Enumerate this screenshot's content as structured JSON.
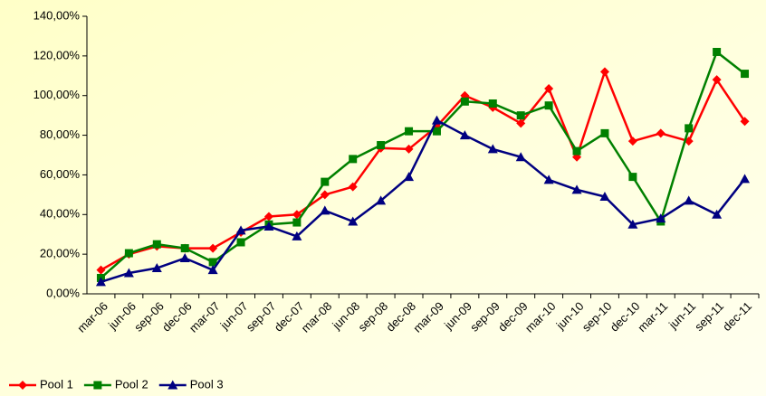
{
  "chart_data": {
    "type": "line",
    "categories": [
      "mar-06",
      "jun-06",
      "sep-06",
      "dec-06",
      "mar-07",
      "jun-07",
      "sep-07",
      "dec-07",
      "mar-08",
      "jun-08",
      "sep-08",
      "dec-08",
      "mar-09",
      "jun-09",
      "sep-09",
      "dec-09",
      "mar-10",
      "jun-10",
      "sep-10",
      "dec-10",
      "mar-11",
      "jun-11",
      "sep-11",
      "dec-11"
    ],
    "series": [
      {
        "name": "Pool 1",
        "color": "#ff0000",
        "marker": "diamond",
        "values": [
          12,
          20,
          24,
          23,
          23,
          31,
          39,
          40,
          50,
          54,
          73.5,
          73,
          84.5,
          100,
          94,
          86,
          103.5,
          69,
          112,
          77,
          81,
          77,
          108,
          87
        ]
      },
      {
        "name": "Pool 2",
        "color": "#008000",
        "marker": "square",
        "values": [
          8,
          20.5,
          25,
          23,
          16,
          26,
          35,
          36,
          56.5,
          68,
          75,
          82,
          82,
          97,
          96,
          90,
          95,
          72,
          81,
          59,
          36.5,
          83.5,
          122,
          111
        ]
      },
      {
        "name": "Pool 3",
        "color": "#000080",
        "marker": "triangle",
        "values": [
          6,
          10.5,
          13,
          18,
          12,
          32,
          34,
          29,
          42,
          36.5,
          47,
          59,
          87.5,
          80,
          73,
          69,
          57.5,
          52.5,
          49,
          35,
          38,
          47,
          40,
          58
        ]
      }
    ],
    "ylim": [
      0,
      140
    ],
    "yticks": [
      {
        "value": 0,
        "label": "0,00%"
      },
      {
        "value": 20,
        "label": "20,00%"
      },
      {
        "value": 40,
        "label": "40,00%"
      },
      {
        "value": 60,
        "label": "60,00%"
      },
      {
        "value": 80,
        "label": "80,00%"
      },
      {
        "value": 100,
        "label": "100,00%"
      },
      {
        "value": 120,
        "label": "120,00%"
      },
      {
        "value": 140,
        "label": "140,00%"
      }
    ],
    "legend": "bottom-left"
  }
}
